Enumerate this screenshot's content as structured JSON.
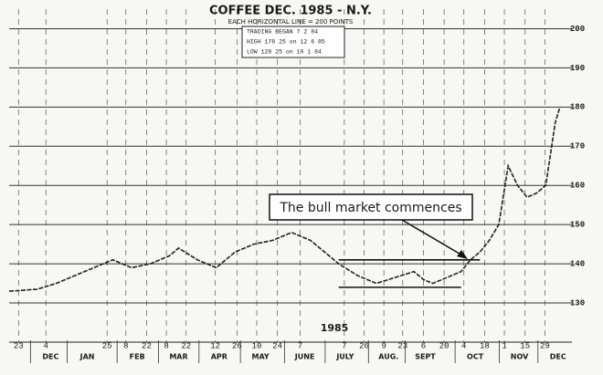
{
  "chart_data": {
    "type": "line",
    "title": "COFFEE DEC. 1985 - N.Y.",
    "subtitle": "EACH HORIZONTAL LINE = 200 POINTS",
    "info": [
      "TRADING BEGAN   7  2 84",
      "HIGH   178 25 on 12  6 85",
      "LOW    128 25 on 10  1 84"
    ],
    "year_label": "1985",
    "annotation": "The bull market commences",
    "series": [
      {
        "name": "Coffee Dec. 1985",
        "color": "#222222",
        "x": [
          0,
          3,
          5,
          7,
          9,
          11,
          13,
          15,
          17,
          18,
          20,
          22,
          24,
          26,
          28,
          30,
          32,
          34,
          35,
          37,
          39,
          41,
          43,
          44,
          45,
          47,
          48,
          49,
          50,
          51,
          52,
          53,
          54,
          55,
          56,
          57,
          58,
          58.5
        ],
        "values": [
          133,
          133.5,
          135,
          137,
          139,
          141,
          139,
          140,
          142,
          144,
          141,
          139,
          143,
          145,
          146,
          148,
          146,
          142,
          140,
          137,
          135,
          136.5,
          138,
          136,
          135,
          137,
          138,
          141,
          143,
          146,
          150,
          165,
          160,
          157,
          158,
          160,
          176,
          180
        ]
      }
    ],
    "trendlines": [
      {
        "value": 141,
        "x": [
          35,
          50
        ]
      },
      {
        "value": 134,
        "x": [
          35,
          48
        ]
      }
    ],
    "xlim": [
      0,
      59
    ],
    "ylim": [
      120,
      205
    ],
    "yticks": [
      130,
      140,
      150,
      160,
      170,
      180,
      190,
      200
    ],
    "xticks": [
      {
        "value": 1,
        "label": "23"
      },
      {
        "value": 3.9,
        "label": "4"
      },
      {
        "value": 10.4,
        "label": "25"
      },
      {
        "value": 12.4,
        "label": "8"
      },
      {
        "value": 14.6,
        "label": "22"
      },
      {
        "value": 16.7,
        "label": "8"
      },
      {
        "value": 18.8,
        "label": "22"
      },
      {
        "value": 21.9,
        "label": "12"
      },
      {
        "value": 24.2,
        "label": "26"
      },
      {
        "value": 26.3,
        "label": "10"
      },
      {
        "value": 28.5,
        "label": "24"
      },
      {
        "value": 30.9,
        "label": "7"
      },
      {
        "value": 35.6,
        "label": "7"
      },
      {
        "value": 37.7,
        "label": "26"
      },
      {
        "value": 39.8,
        "label": "9"
      },
      {
        "value": 41.8,
        "label": "23"
      },
      {
        "value": 44,
        "label": "6"
      },
      {
        "value": 46.2,
        "label": "20"
      },
      {
        "value": 48.3,
        "label": "4"
      },
      {
        "value": 50.5,
        "label": "18"
      },
      {
        "value": 52.6,
        "label": "1"
      },
      {
        "value": 54.8,
        "label": "15"
      },
      {
        "value": 56.9,
        "label": "29"
      }
    ],
    "months": [
      {
        "value": 4.4,
        "label": "DEC"
      },
      {
        "value": 8.3,
        "label": "JAN"
      },
      {
        "value": 13.6,
        "label": "FEB"
      },
      {
        "value": 18,
        "label": "MAR"
      },
      {
        "value": 22.3,
        "label": "APR"
      },
      {
        "value": 26.7,
        "label": "MAY"
      },
      {
        "value": 31.4,
        "label": "JUNE"
      },
      {
        "value": 35.7,
        "label": "JULY"
      },
      {
        "value": 40.3,
        "label": "AUG."
      },
      {
        "value": 44.2,
        "label": "SEPT"
      },
      {
        "value": 49.5,
        "label": "OCT"
      },
      {
        "value": 54.2,
        "label": "NOV"
      },
      {
        "value": 58.3,
        "label": "DEC"
      }
    ],
    "grid": true
  }
}
